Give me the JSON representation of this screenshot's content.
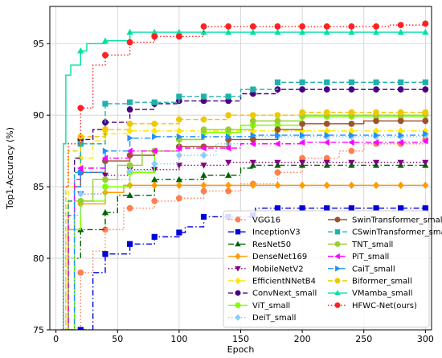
{
  "chart_data": {
    "type": "line",
    "xlabel": "Epoch",
    "ylabel": "Top1-Accuracy (%)",
    "xlim": [
      -5,
      305
    ],
    "ylim": [
      75,
      97.6
    ],
    "xticks": [
      0,
      50,
      100,
      150,
      200,
      250,
      300
    ],
    "yticks": [
      75,
      80,
      85,
      90,
      95
    ],
    "legend_location": "lower-right",
    "legend_columns": 2,
    "grid": true,
    "series": [
      {
        "name": "VGG16",
        "color": "#ff7f50",
        "style": "dotted",
        "marker": "circle",
        "step": true,
        "points": [
          [
            15,
            75
          ],
          [
            20,
            79
          ],
          [
            30,
            80.5
          ],
          [
            40,
            82
          ],
          [
            55,
            83.5
          ],
          [
            80,
            84
          ],
          [
            100,
            84.2
          ],
          [
            120,
            84.7
          ],
          [
            150,
            85.2
          ],
          [
            180,
            86
          ],
          [
            200,
            87
          ],
          [
            230,
            87.5
          ],
          [
            250,
            88
          ],
          [
            300,
            88.3
          ]
        ]
      },
      {
        "name": "InceptionV3",
        "color": "#0000dd",
        "style": "dashdot",
        "marker": "square",
        "step": true,
        "points": [
          [
            20,
            75
          ],
          [
            30,
            79
          ],
          [
            40,
            80.3
          ],
          [
            60,
            81
          ],
          [
            80,
            81.5
          ],
          [
            100,
            81.8
          ],
          [
            105,
            82.2
          ],
          [
            120,
            82.9
          ],
          [
            160,
            83
          ],
          [
            162,
            83.5
          ],
          [
            300,
            83.5
          ]
        ]
      },
      {
        "name": "ResNet50",
        "color": "#006400",
        "style": "dashdot",
        "marker": "triangle",
        "step": true,
        "points": [
          [
            12,
            75
          ],
          [
            15,
            80
          ],
          [
            20,
            82
          ],
          [
            40,
            83.2
          ],
          [
            50,
            84.4
          ],
          [
            80,
            85.5
          ],
          [
            120,
            85.8
          ],
          [
            150,
            86.3
          ],
          [
            160,
            86.5
          ],
          [
            300,
            86.5
          ]
        ]
      },
      {
        "name": "DenseNet169",
        "color": "#ff9c00",
        "style": "solid",
        "marker": "diamond",
        "step": true,
        "points": [
          [
            10,
            75
          ],
          [
            15,
            82
          ],
          [
            20,
            83.8
          ],
          [
            40,
            84.6
          ],
          [
            55,
            85.1
          ],
          [
            300,
            85.1
          ]
        ]
      },
      {
        "name": "MobileNetV2",
        "color": "#800080",
        "style": "dotted",
        "marker": "triangle-down",
        "step": true,
        "points": [
          [
            8,
            75
          ],
          [
            10,
            80
          ],
          [
            15,
            83
          ],
          [
            20,
            84.5
          ],
          [
            40,
            85.8
          ],
          [
            60,
            86.2
          ],
          [
            100,
            86.5
          ],
          [
            140,
            86.7
          ],
          [
            300,
            86.7
          ]
        ]
      },
      {
        "name": "EfficientNNetB4",
        "color": "#ffe600",
        "style": "dashdot",
        "marker": "diamond",
        "step": true,
        "points": [
          [
            5,
            75
          ],
          [
            8,
            82
          ],
          [
            10,
            85
          ],
          [
            20,
            87
          ],
          [
            30,
            88.2
          ],
          [
            40,
            88.7
          ],
          [
            60,
            88.9
          ],
          [
            300,
            88.9
          ]
        ]
      },
      {
        "name": "ConvNext_small",
        "color": "#4b0082",
        "style": "dashed",
        "marker": "circle",
        "step": true,
        "points": [
          [
            8,
            75
          ],
          [
            10,
            84
          ],
          [
            15,
            87
          ],
          [
            20,
            88.3
          ],
          [
            30,
            89
          ],
          [
            40,
            89.5
          ],
          [
            60,
            90.4
          ],
          [
            80,
            90.8
          ],
          [
            100,
            91
          ],
          [
            150,
            91.5
          ],
          [
            180,
            91.8
          ],
          [
            300,
            91.8
          ]
        ]
      },
      {
        "name": "ViT_small",
        "color": "#7fff00",
        "style": "solid",
        "marker": "circle",
        "step": true,
        "points": [
          [
            10,
            75
          ],
          [
            15,
            82
          ],
          [
            20,
            84
          ],
          [
            40,
            85
          ],
          [
            60,
            86
          ],
          [
            80,
            87.5
          ],
          [
            100,
            88.3
          ],
          [
            120,
            88.8
          ],
          [
            150,
            89.3
          ],
          [
            200,
            89.9
          ],
          [
            300,
            90
          ]
        ]
      },
      {
        "name": "DeiT_small",
        "color": "#87cefa",
        "style": "dotted",
        "marker": "diamond",
        "step": true,
        "points": [
          [
            8,
            75
          ],
          [
            10,
            80
          ],
          [
            15,
            83
          ],
          [
            20,
            84.5
          ],
          [
            40,
            85.5
          ],
          [
            60,
            86.1
          ],
          [
            80,
            86.6
          ],
          [
            100,
            87.2
          ],
          [
            130,
            88
          ],
          [
            160,
            88.5
          ],
          [
            300,
            88.6
          ]
        ]
      },
      {
        "name": "SwinTransformer_small",
        "color": "#a0522d",
        "style": "solid",
        "marker": "circle",
        "step": true,
        "points": [
          [
            8,
            75
          ],
          [
            10,
            82
          ],
          [
            15,
            85
          ],
          [
            20,
            86
          ],
          [
            40,
            86.8
          ],
          [
            60,
            87.2
          ],
          [
            80,
            87.5
          ],
          [
            100,
            87.8
          ],
          [
            140,
            88.3
          ],
          [
            180,
            89
          ],
          [
            200,
            89.4
          ],
          [
            250,
            89.6
          ],
          [
            300,
            89.6
          ]
        ]
      },
      {
        "name": "CSwinTransformer_small",
        "color": "#20b2aa",
        "style": "dashed",
        "marker": "square",
        "step": true,
        "points": [
          [
            8,
            75
          ],
          [
            10,
            84
          ],
          [
            15,
            86
          ],
          [
            20,
            88
          ],
          [
            40,
            90.8
          ],
          [
            60,
            90.9
          ],
          [
            100,
            91.3
          ],
          [
            150,
            91.8
          ],
          [
            180,
            92.3
          ],
          [
            300,
            92.3
          ]
        ]
      },
      {
        "name": "TNT_small",
        "color": "#9acd32",
        "style": "solid",
        "marker": "circle",
        "step": true,
        "points": [
          [
            8,
            75
          ],
          [
            10,
            82
          ],
          [
            15,
            84
          ],
          [
            30,
            85.5
          ],
          [
            50,
            86.5
          ],
          [
            70,
            87.5
          ],
          [
            100,
            88.3
          ],
          [
            120,
            89
          ],
          [
            160,
            89.6
          ],
          [
            200,
            90
          ],
          [
            300,
            90.1
          ]
        ]
      },
      {
        "name": "PiT_small",
        "color": "#ff00ff",
        "style": "dashdot",
        "marker": "triangle-left",
        "step": true,
        "points": [
          [
            6,
            75
          ],
          [
            10,
            83
          ],
          [
            15,
            85.5
          ],
          [
            20,
            86.3
          ],
          [
            40,
            87
          ],
          [
            60,
            87.5
          ],
          [
            100,
            87.7
          ],
          [
            150,
            88
          ],
          [
            200,
            88.1
          ],
          [
            300,
            88.2
          ]
        ]
      },
      {
        "name": "CaiT_small",
        "color": "#1e90ff",
        "style": "dashdot",
        "marker": "triangle-right",
        "step": true,
        "points": [
          [
            10,
            75
          ],
          [
            15,
            85
          ],
          [
            20,
            86
          ],
          [
            40,
            87.5
          ],
          [
            60,
            88.4
          ],
          [
            80,
            88.5
          ],
          [
            160,
            88.6
          ],
          [
            300,
            88.7
          ]
        ]
      },
      {
        "name": "Biformer_small",
        "color": "#f0c800",
        "style": "dashed",
        "marker": "circle",
        "step": true,
        "points": [
          [
            6,
            75
          ],
          [
            8,
            85
          ],
          [
            10,
            87.5
          ],
          [
            20,
            88.5
          ],
          [
            40,
            89
          ],
          [
            60,
            89.4
          ],
          [
            100,
            89.7
          ],
          [
            140,
            90
          ],
          [
            200,
            90.2
          ],
          [
            300,
            90.2
          ]
        ]
      },
      {
        "name": "VMamba_small",
        "color": "#00e0a0",
        "style": "solid",
        "marker": "triangle",
        "step": true,
        "points": [
          [
            4,
            75
          ],
          [
            6,
            88
          ],
          [
            8,
            92.8
          ],
          [
            12,
            93.5
          ],
          [
            20,
            94.5
          ],
          [
            25,
            95
          ],
          [
            40,
            95.2
          ],
          [
            60,
            95.8
          ],
          [
            300,
            95.8
          ]
        ]
      },
      {
        "name": "HFWC-Net(ours)",
        "color": "#ff2020",
        "style": "dotted",
        "marker": "circle",
        "step": true,
        "points": [
          [
            4,
            75
          ],
          [
            6,
            85
          ],
          [
            10,
            88
          ],
          [
            20,
            90.5
          ],
          [
            30,
            93.5
          ],
          [
            40,
            94.2
          ],
          [
            60,
            95.1
          ],
          [
            80,
            95.5
          ],
          [
            120,
            96.2
          ],
          [
            270,
            96.3
          ],
          [
            300,
            96.4
          ]
        ]
      }
    ]
  }
}
